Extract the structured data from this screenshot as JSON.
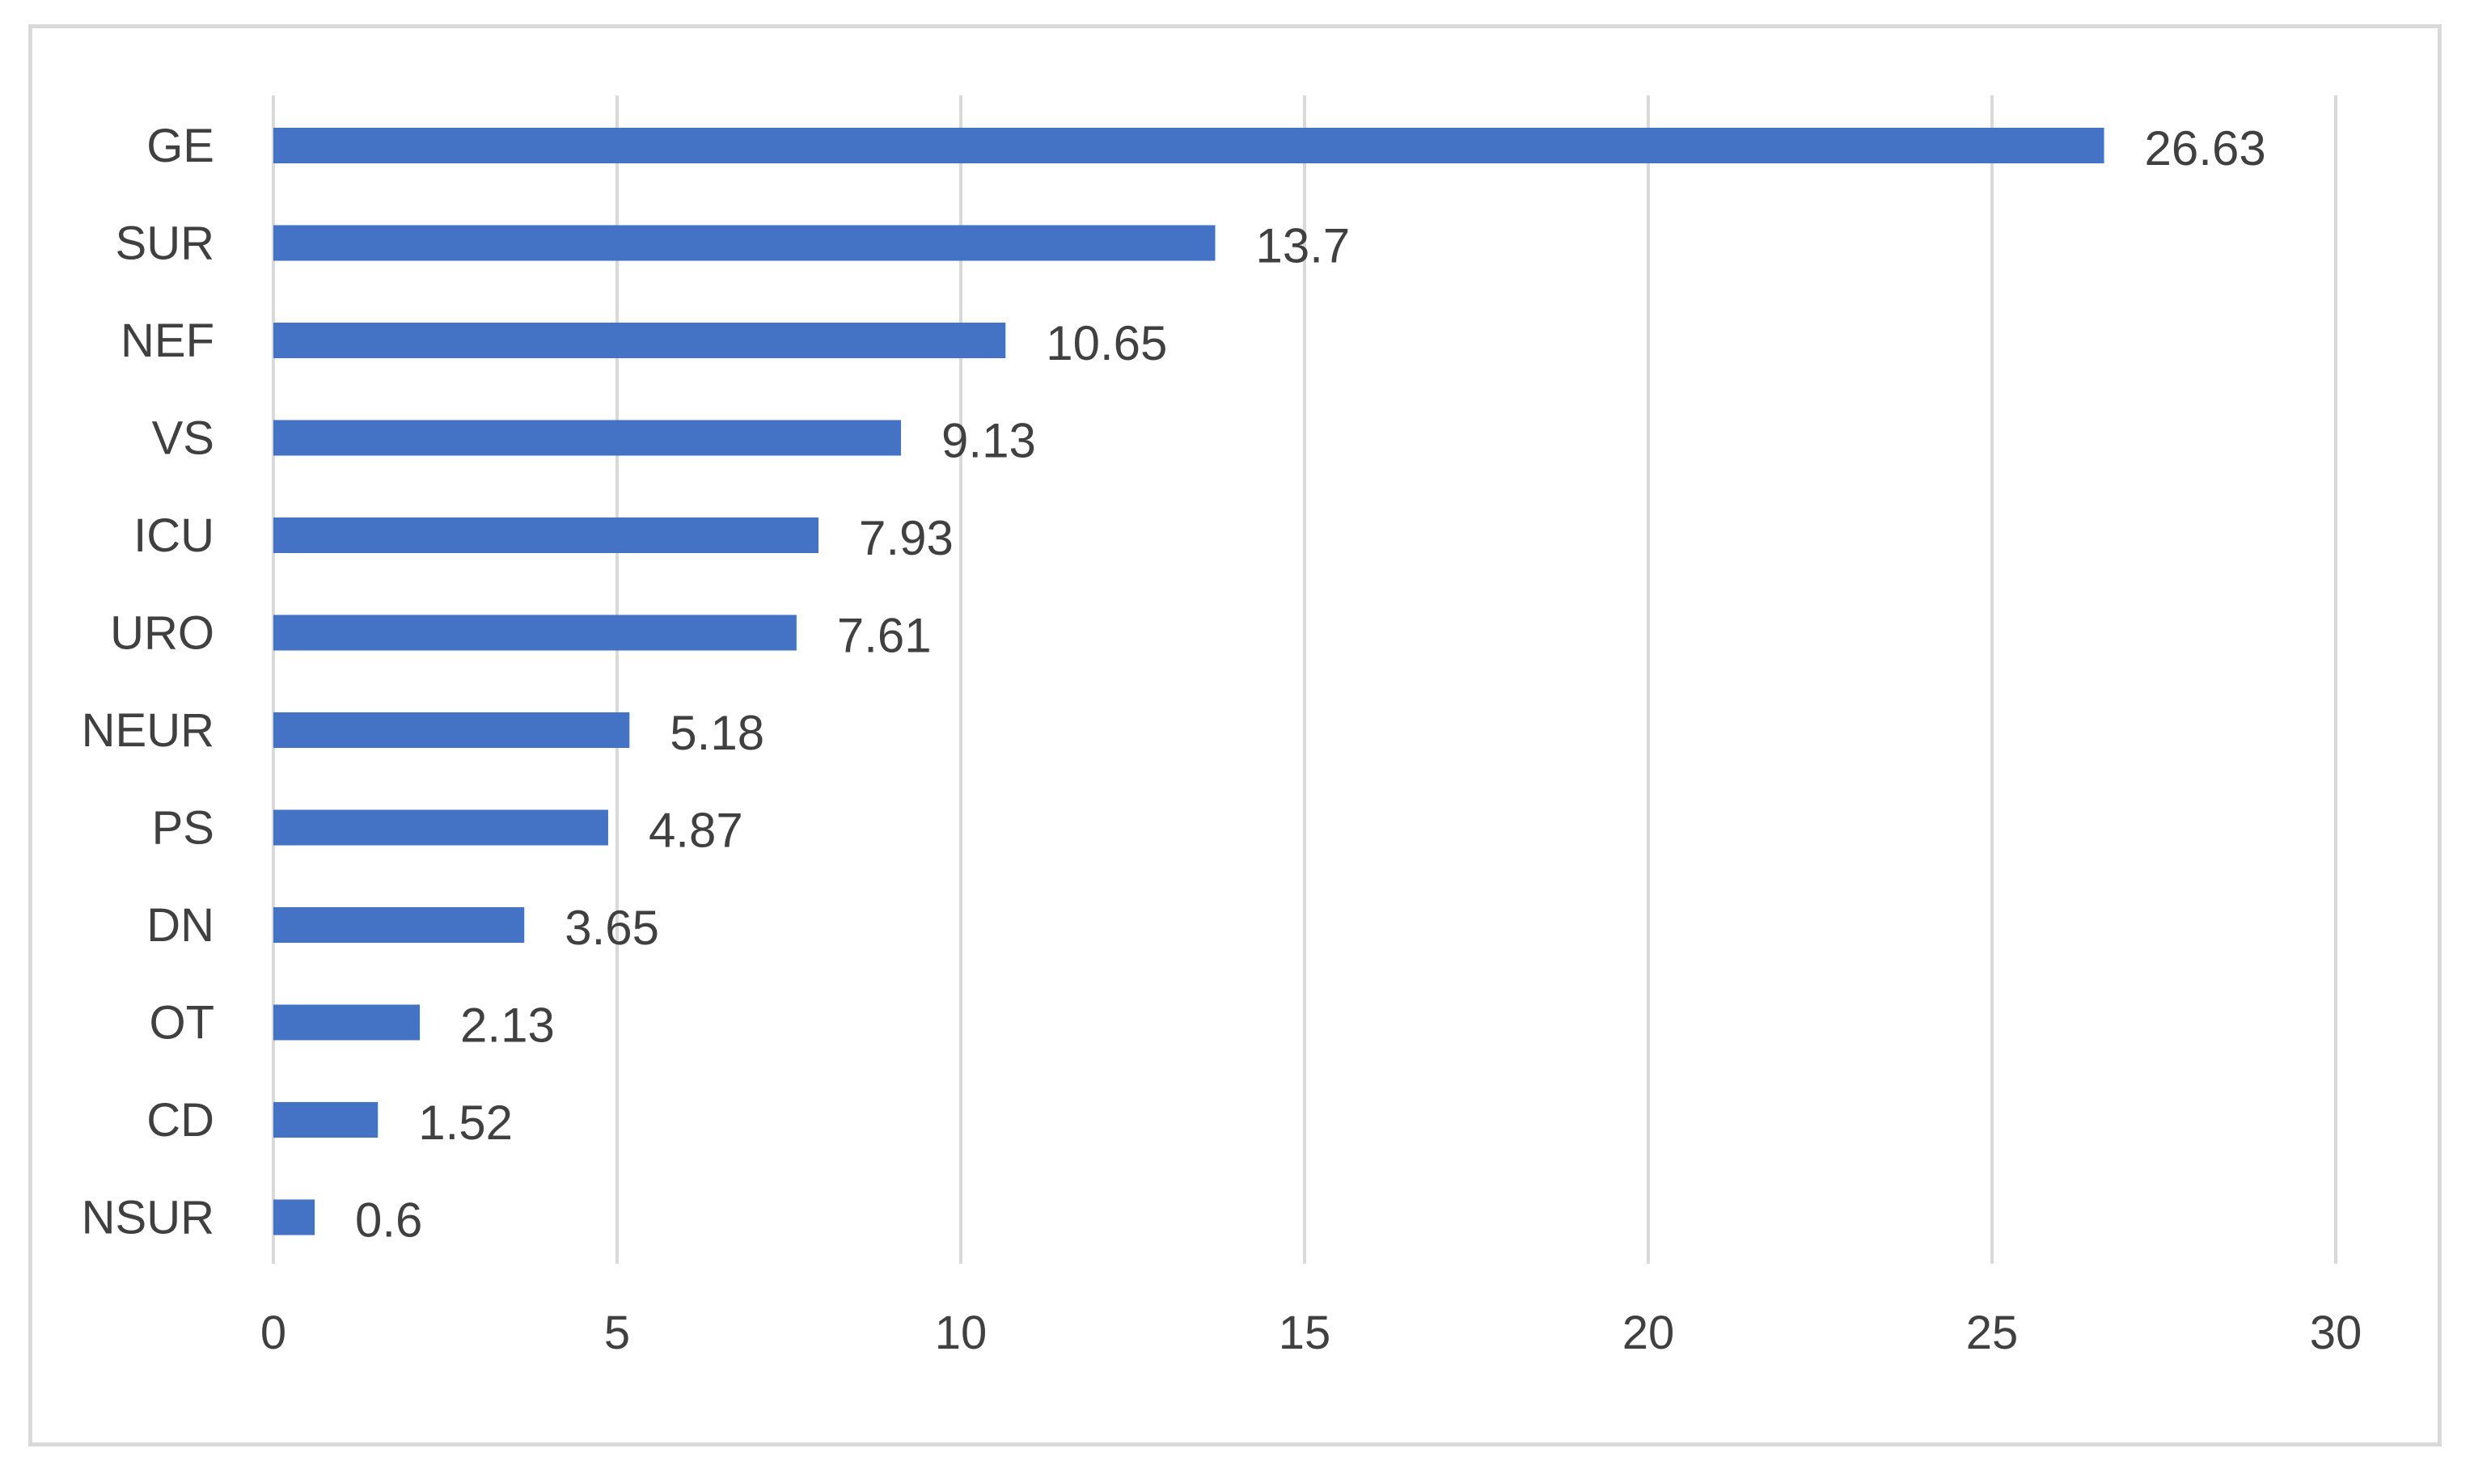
{
  "chart_data": {
    "type": "bar",
    "orientation": "horizontal",
    "categories": [
      "GE",
      "SUR",
      "NEF",
      "VS",
      "ICU",
      "URO",
      "NEUR",
      "PS",
      "DN",
      "OT",
      "CD",
      "NSUR"
    ],
    "values": [
      26.63,
      13.7,
      10.65,
      9.13,
      7.93,
      7.61,
      5.18,
      4.87,
      3.65,
      2.13,
      1.52,
      0.6
    ],
    "data_labels": [
      "26.63",
      "13.7",
      "10.65",
      "9.13",
      "7.93",
      "7.61",
      "5.18",
      "4.87",
      "3.65",
      "2.13",
      "1.52",
      "0.6"
    ],
    "xlim": [
      0,
      30
    ],
    "x_ticks": [
      0,
      5,
      10,
      15,
      20,
      25,
      30
    ],
    "x_tick_labels": [
      "0",
      "5",
      "10",
      "15",
      "20",
      "25",
      "30"
    ],
    "title": "",
    "xlabel": "",
    "ylabel": "",
    "grid": "vertical",
    "legend": "none",
    "colors": {
      "bar": "#4472c4",
      "grid": "#d9d9d9",
      "text": "#404040",
      "frame": "#d9d9d9"
    }
  }
}
